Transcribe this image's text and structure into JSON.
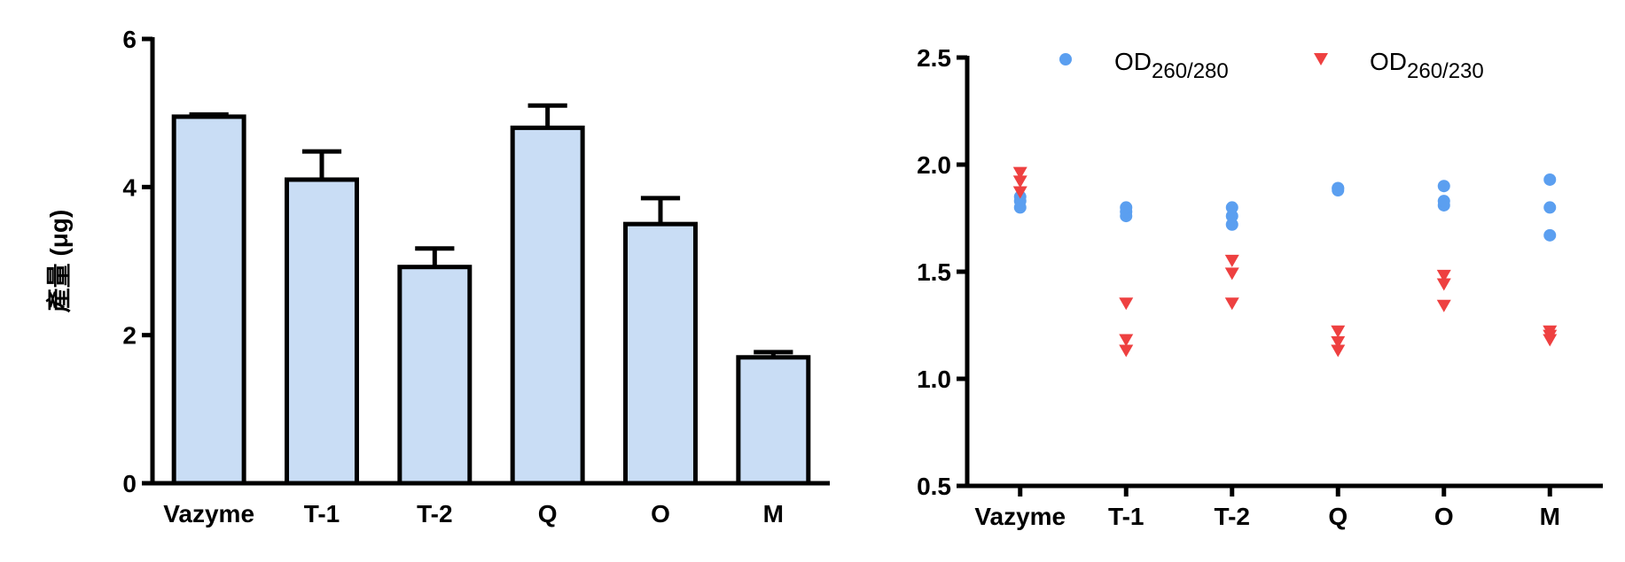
{
  "chart_data": [
    {
      "type": "bar",
      "ylabel": "產量 (μg)",
      "categories": [
        "Vazyme",
        "T-1",
        "T-2",
        "Q",
        "O",
        "M"
      ],
      "values": [
        4.95,
        4.1,
        2.92,
        4.8,
        3.5,
        1.7
      ],
      "errors": [
        0.03,
        0.38,
        0.25,
        0.3,
        0.35,
        0.07
      ],
      "color": "#c9ddf5",
      "ylim": [
        0,
        6
      ],
      "yticks": [
        0,
        2,
        4,
        6
      ]
    },
    {
      "type": "scatter",
      "categories": [
        "Vazyme",
        "T-1",
        "T-2",
        "Q",
        "O",
        "M"
      ],
      "series": [
        {
          "name": "OD",
          "subscript": "260/280",
          "color": "#5b9ff0",
          "marker": "circle",
          "values": [
            [
              1.8,
              1.83,
              1.85
            ],
            [
              1.76,
              1.78,
              1.8
            ],
            [
              1.72,
              1.76,
              1.8
            ],
            [
              1.88,
              1.89,
              1.89
            ],
            [
              1.81,
              1.83,
              1.9
            ],
            [
              1.67,
              1.8,
              1.93
            ]
          ]
        },
        {
          "name": "OD",
          "subscript": "260/230",
          "color": "#ee4040",
          "marker": "triangle-down",
          "values": [
            [
              1.87,
              1.92,
              1.96
            ],
            [
              1.13,
              1.18,
              1.35
            ],
            [
              1.35,
              1.49,
              1.55
            ],
            [
              1.13,
              1.17,
              1.22
            ],
            [
              1.34,
              1.44,
              1.48
            ],
            [
              1.18,
              1.2,
              1.22
            ]
          ]
        }
      ],
      "ylim": [
        0.5,
        2.5
      ],
      "yticks": [
        0.5,
        {
          "value": 1,
          "label": "1.0"
        },
        1.5,
        {
          "value": 2,
          "label": "2.0"
        },
        2.5
      ]
    }
  ]
}
